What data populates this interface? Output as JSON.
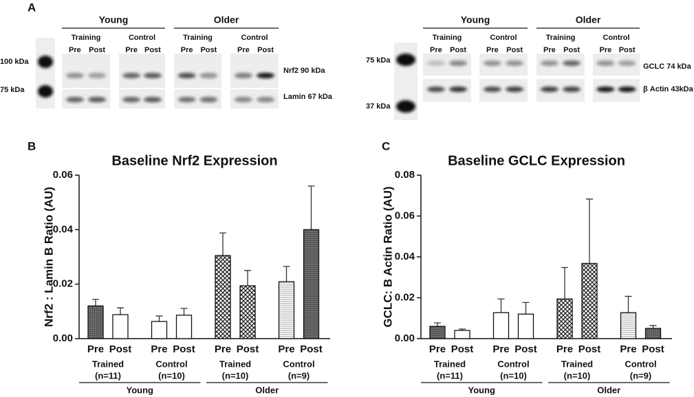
{
  "panel_label": "A",
  "blots": [
    {
      "ladder": [
        "100 kDa",
        "75 kDa"
      ],
      "groups": [
        {
          "label": "Young",
          "subgroups": [
            {
              "label": "Training",
              "lanes": [
                "Pre",
                "Post"
              ]
            },
            {
              "label": "Control",
              "lanes": [
                "Pre",
                "Post"
              ]
            }
          ]
        },
        {
          "label": "Older",
          "subgroups": [
            {
              "label": "Training",
              "lanes": [
                "Pre",
                "Post"
              ]
            },
            {
              "label": "Control",
              "lanes": [
                "Pre",
                "Post"
              ]
            }
          ]
        }
      ],
      "bands": [
        "Nrf2 90 kDa",
        "Lamin 67 kDa"
      ]
    },
    {
      "ladder": [
        "75 kDa",
        "37 kDa"
      ],
      "groups": [
        {
          "label": "Young",
          "subgroups": [
            {
              "label": "Training",
              "lanes": [
                "Pre",
                "Post"
              ]
            },
            {
              "label": "Control",
              "lanes": [
                "Pre",
                "Post"
              ]
            }
          ]
        },
        {
          "label": "Older",
          "subgroups": [
            {
              "label": "Training",
              "lanes": [
                "Pre",
                "Post"
              ]
            },
            {
              "label": "Control",
              "lanes": [
                "Pre",
                "Post"
              ]
            }
          ]
        }
      ],
      "bands": [
        "GCLC 74 kDa",
        "β Actin 43kDa"
      ]
    }
  ],
  "chart_data": [
    {
      "panel_label": "B",
      "type": "bar",
      "title": "Baseline Nrf2 Expression",
      "y_label": "Nrf2 : Lamin B Ratio (AU)",
      "categories": [
        "Pre",
        "Post",
        "Pre",
        "Post",
        "Pre",
        "Post",
        "Pre",
        "Post"
      ],
      "values": [
        0.012,
        0.0088,
        0.0063,
        0.0086,
        0.0305,
        0.0194,
        0.0209,
        0.04
      ],
      "errors": [
        0.0024,
        0.0025,
        0.002,
        0.0025,
        0.0083,
        0.0056,
        0.0056,
        0.016
      ],
      "fills": [
        "dark",
        "white",
        "white",
        "white",
        "checker",
        "checker",
        "striped",
        "dark"
      ],
      "groups": [
        {
          "label": "Trained",
          "n": "(n=11)"
        },
        {
          "label": "Control",
          "n": "(n=10)"
        },
        {
          "label": "Trained",
          "n": "(n=10)"
        },
        {
          "label": "Control",
          "n": "(n=9)"
        }
      ],
      "supergroups": [
        "Young",
        "Older"
      ],
      "ylim": [
        0,
        0.06
      ],
      "yticks": [
        {
          "value": 0,
          "label": "0.00"
        },
        0.02,
        0.04,
        0.06
      ]
    },
    {
      "panel_label": "C",
      "type": "bar",
      "title": "Baseline GCLC Expression",
      "y_label": "GCLC: B Actin Ratio (AU)",
      "categories": [
        "Pre",
        "Post",
        "Pre",
        "Post",
        "Pre",
        "Post",
        "Pre",
        "Post"
      ],
      "values": [
        0.006,
        0.004,
        0.0127,
        0.012,
        0.0194,
        0.0368,
        0.0127,
        0.005
      ],
      "errors": [
        0.0017,
        0.0007,
        0.0067,
        0.0057,
        0.0154,
        0.0315,
        0.008,
        0.0014
      ],
      "fills": [
        "dark",
        "white",
        "white",
        "white",
        "checker",
        "checker",
        "striped",
        "dark"
      ],
      "groups": [
        {
          "label": "Trained",
          "n": "(n=11)"
        },
        {
          "label": "Control",
          "n": "(n=10)"
        },
        {
          "label": "Trained",
          "n": "(n=10)"
        },
        {
          "label": "Control",
          "n": "(n=9)"
        }
      ],
      "supergroups": [
        "Young",
        "Older"
      ],
      "ylim": [
        0,
        0.08
      ],
      "yticks": [
        {
          "value": 0,
          "label": "0.00"
        },
        0.02,
        0.04,
        0.06,
        0.08
      ]
    }
  ]
}
